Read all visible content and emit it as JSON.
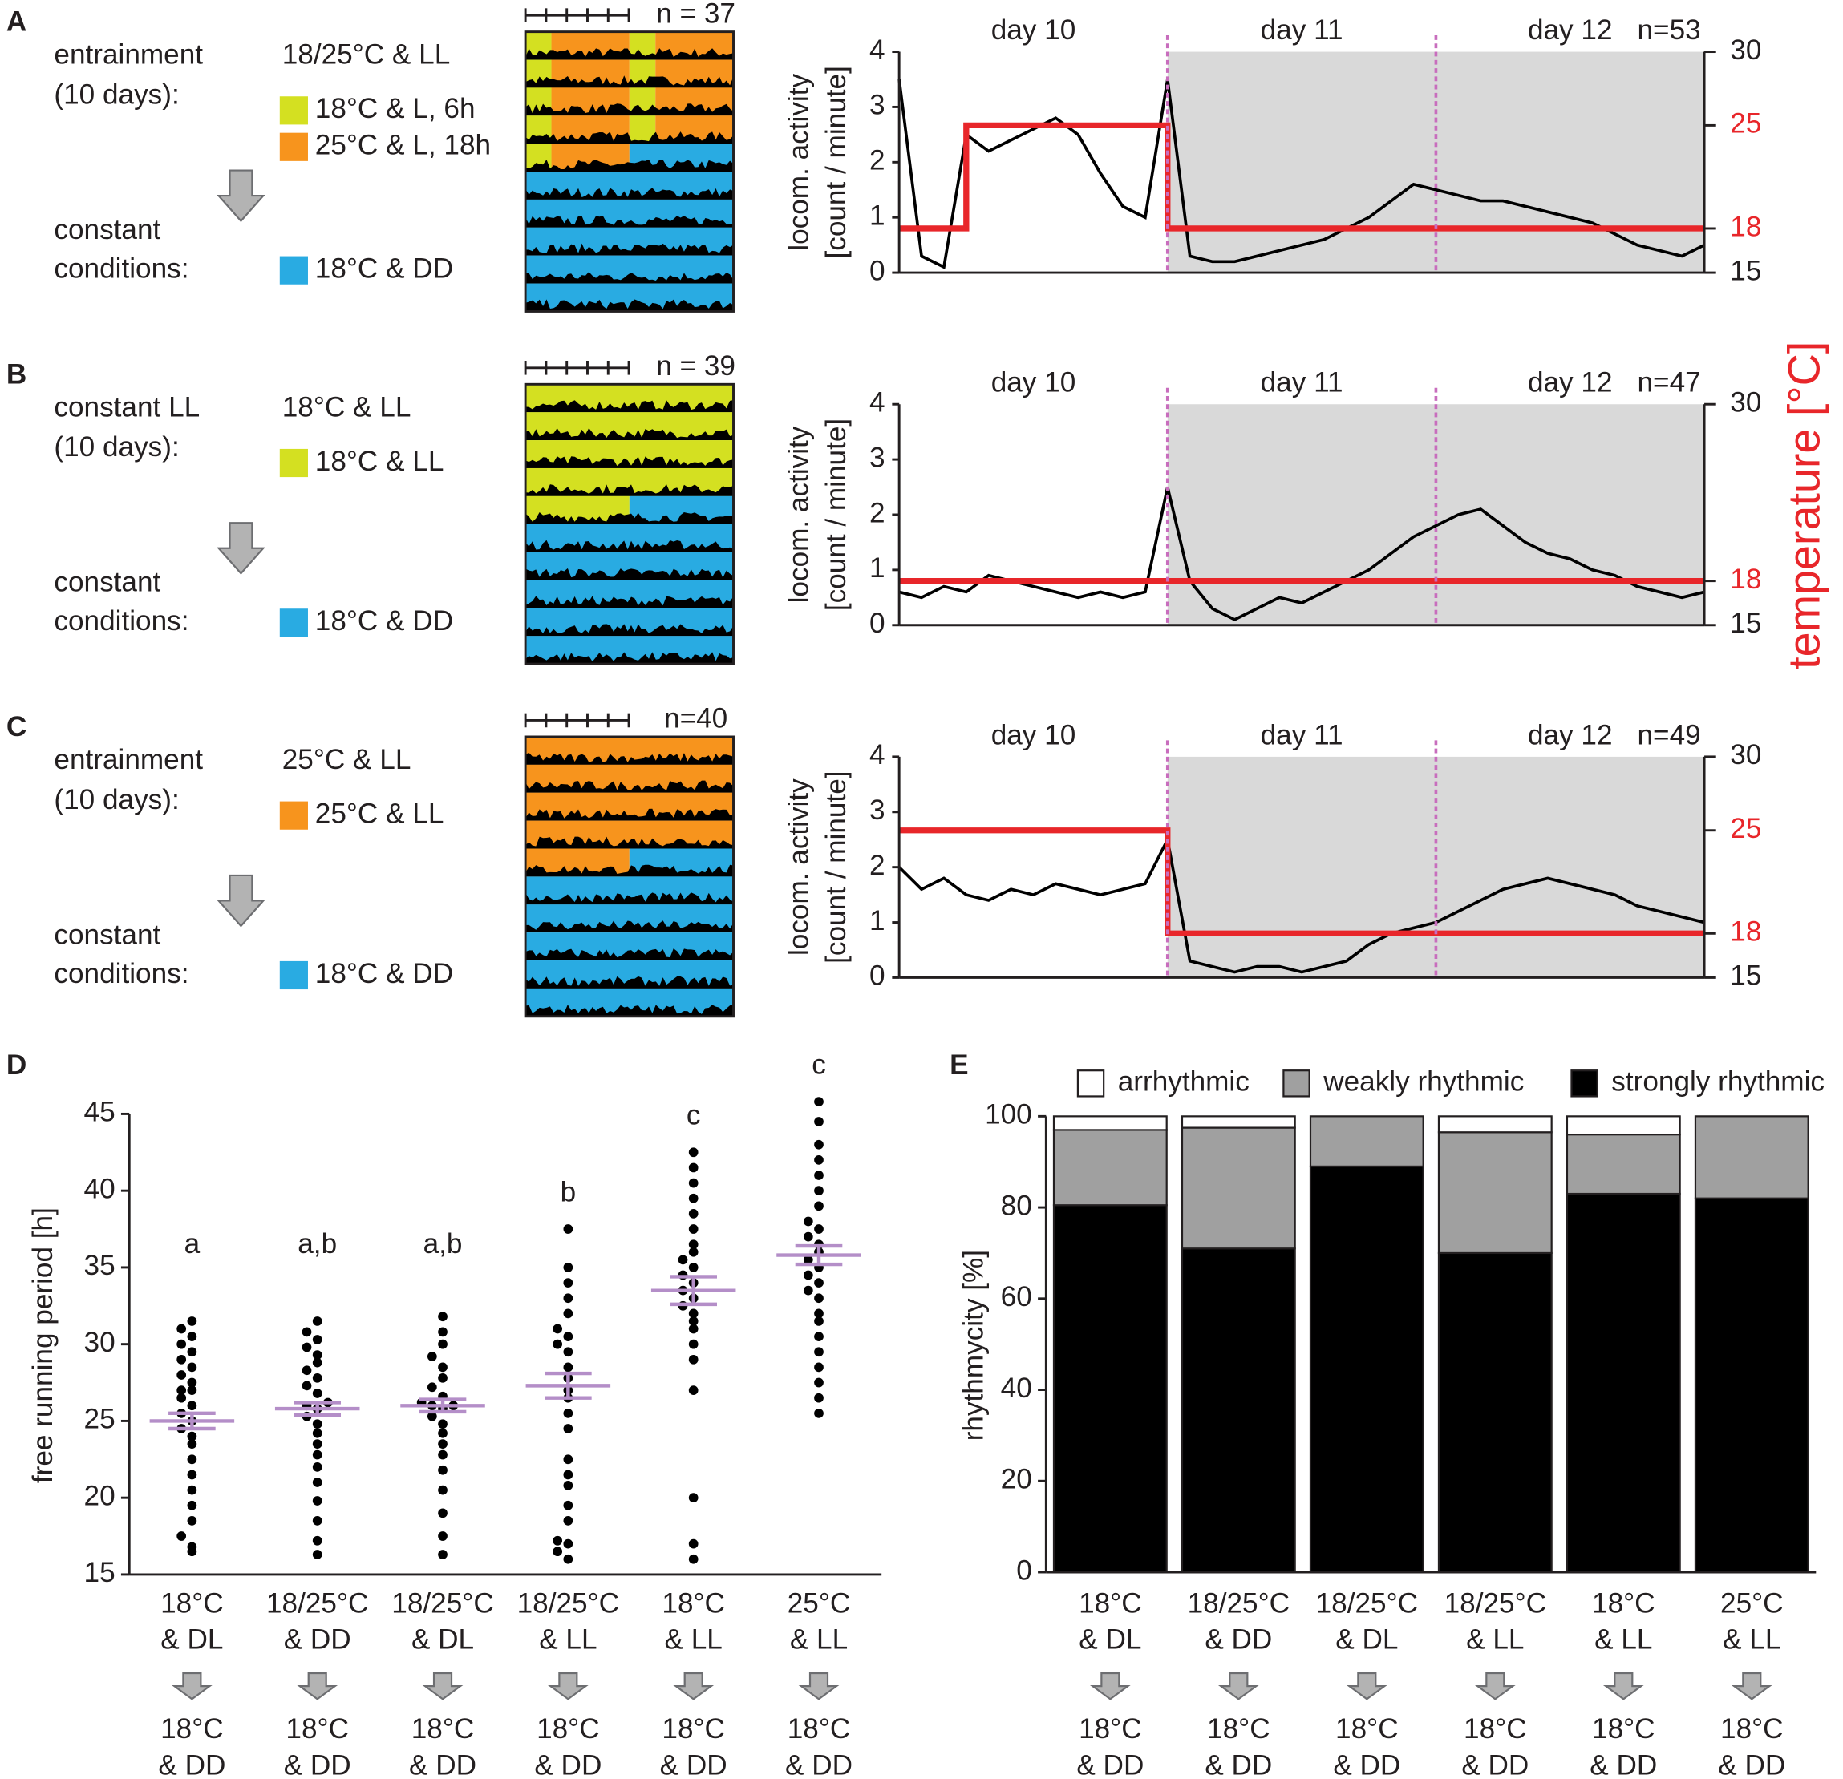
{
  "chart_data": [
    {
      "type": "line",
      "panel": "A",
      "protocol": {
        "entrain": [
          "entrainment",
          "(10 days):"
        ],
        "condition": "18/25°C & LL",
        "legend": [
          {
            "label": "18°C & L, 6h",
            "color": "#d4e021"
          },
          {
            "label": "25°C & L, 18h",
            "color": "#f7941d"
          },
          {
            "label": "18°C & DD",
            "color": "#29abe2"
          }
        ],
        "constant": [
          "constant",
          "conditions:"
        ]
      },
      "actogram_n": "n = 37",
      "day_labels": [
        "day 10",
        "day 11",
        "day 12"
      ],
      "n": "n=53",
      "ylabel": [
        "locom. activity",
        "[count / minute]"
      ],
      "xlim": [
        0,
        72
      ],
      "dark_start": 24,
      "day_lines": [
        24,
        48
      ],
      "day_line_color": "#c86dbd",
      "ylim": [
        0,
        4
      ],
      "yticks": [
        0,
        1,
        2,
        3,
        4
      ],
      "y2lim": [
        15,
        30
      ],
      "y2ticks": [
        15,
        18,
        25,
        30
      ],
      "x": [
        0,
        2,
        4,
        6,
        8,
        10,
        12,
        14,
        16,
        18,
        20,
        22,
        24,
        26,
        28,
        30,
        32,
        34,
        36,
        38,
        40,
        42,
        44,
        46,
        48,
        50,
        52,
        54,
        56,
        58,
        60,
        62,
        64,
        66,
        68,
        70,
        72
      ],
      "series": [
        {
          "color": "#000000",
          "values": [
            3.5,
            0.3,
            0.1,
            2.5,
            2.2,
            2.4,
            2.6,
            2.8,
            2.5,
            1.8,
            1.2,
            1.0,
            3.5,
            0.3,
            0.2,
            0.2,
            0.3,
            0.4,
            0.5,
            0.6,
            0.8,
            1.0,
            1.3,
            1.6,
            1.5,
            1.4,
            1.3,
            1.3,
            1.2,
            1.1,
            1.0,
            0.9,
            0.7,
            0.5,
            0.4,
            0.3,
            0.5
          ]
        },
        {
          "color": "#e8262a",
          "axis": "y2",
          "x": [
            0,
            6,
            6,
            24,
            24,
            72
          ],
          "values": [
            18,
            18,
            25,
            25,
            18,
            18
          ]
        }
      ]
    },
    {
      "type": "line",
      "panel": "B",
      "protocol": {
        "entrain": [
          "constant LL",
          "(10 days):"
        ],
        "condition": "18°C & LL",
        "legend": [
          {
            "label": "18°C & LL",
            "color": "#d4e021"
          },
          {
            "label": "18°C & DD",
            "color": "#29abe2"
          }
        ],
        "constant": [
          "constant",
          "conditions:"
        ]
      },
      "actogram_n": "n = 39",
      "day_labels": [
        "day 10",
        "day 11",
        "day 12"
      ],
      "n": "n=47",
      "ylabel": [
        "locom. activity",
        "[count / minute]"
      ],
      "y2label": "temperature [°C]",
      "xlim": [
        0,
        72
      ],
      "dark_start": 24,
      "day_lines": [
        24,
        48
      ],
      "day_line_color": "#c86dbd",
      "ylim": [
        0,
        4
      ],
      "yticks": [
        0,
        1,
        2,
        3,
        4
      ],
      "y2lim": [
        15,
        30
      ],
      "y2ticks": [
        15,
        18,
        30
      ],
      "x": [
        0,
        2,
        4,
        6,
        8,
        10,
        12,
        14,
        16,
        18,
        20,
        22,
        24,
        26,
        28,
        30,
        32,
        34,
        36,
        38,
        40,
        42,
        44,
        46,
        48,
        50,
        52,
        54,
        56,
        58,
        60,
        62,
        64,
        66,
        68,
        70,
        72
      ],
      "series": [
        {
          "color": "#000000",
          "values": [
            0.6,
            0.5,
            0.7,
            0.6,
            0.9,
            0.8,
            0.7,
            0.6,
            0.5,
            0.6,
            0.5,
            0.6,
            2.5,
            0.8,
            0.3,
            0.1,
            0.3,
            0.5,
            0.4,
            0.6,
            0.8,
            1.0,
            1.3,
            1.6,
            1.8,
            2.0,
            2.1,
            1.8,
            1.5,
            1.3,
            1.2,
            1.0,
            0.9,
            0.7,
            0.6,
            0.5,
            0.6
          ]
        },
        {
          "color": "#e8262a",
          "axis": "y2",
          "x": [
            0,
            72
          ],
          "values": [
            18,
            18
          ]
        }
      ]
    },
    {
      "type": "line",
      "panel": "C",
      "protocol": {
        "entrain": [
          "entrainment",
          "(10 days):"
        ],
        "condition": "25°C & LL",
        "legend": [
          {
            "label": "25°C & LL",
            "color": "#f7941d"
          },
          {
            "label": "18°C & DD",
            "color": "#29abe2"
          }
        ],
        "constant": [
          "constant",
          "conditions:"
        ]
      },
      "actogram_n": "n=40",
      "day_labels": [
        "day 10",
        "day 11",
        "day 12"
      ],
      "n": "n=49",
      "ylabel": [
        "locom. activity",
        "[count / minute]"
      ],
      "xlim": [
        0,
        72
      ],
      "dark_start": 24,
      "day_lines": [
        24,
        48
      ],
      "day_line_color": "#c86dbd",
      "ylim": [
        0,
        4
      ],
      "yticks": [
        0,
        1,
        2,
        3,
        4
      ],
      "y2lim": [
        15,
        30
      ],
      "y2ticks": [
        15,
        18,
        25,
        30
      ],
      "x": [
        0,
        2,
        4,
        6,
        8,
        10,
        12,
        14,
        16,
        18,
        20,
        22,
        24,
        26,
        28,
        30,
        32,
        34,
        36,
        38,
        40,
        42,
        44,
        46,
        48,
        50,
        52,
        54,
        56,
        58,
        60,
        62,
        64,
        66,
        68,
        70,
        72
      ],
      "series": [
        {
          "color": "#000000",
          "values": [
            2.0,
            1.6,
            1.8,
            1.5,
            1.4,
            1.6,
            1.5,
            1.7,
            1.6,
            1.5,
            1.6,
            1.7,
            2.5,
            0.3,
            0.2,
            0.1,
            0.2,
            0.2,
            0.1,
            0.2,
            0.3,
            0.6,
            0.8,
            0.9,
            1.0,
            1.2,
            1.4,
            1.6,
            1.7,
            1.8,
            1.7,
            1.6,
            1.5,
            1.3,
            1.2,
            1.1,
            1.0
          ]
        },
        {
          "color": "#e8262a",
          "axis": "y2",
          "x": [
            0,
            24,
            24,
            72
          ],
          "values": [
            25,
            25,
            18,
            18
          ]
        }
      ]
    },
    {
      "type": "scatter",
      "panel": "D",
      "categories": [
        [
          "18°C",
          "& DL"
        ],
        [
          "18/25°C",
          "& DD"
        ],
        [
          "18/25°C",
          "& DL"
        ],
        [
          "18/25°C",
          "& LL"
        ],
        [
          "18°C",
          "& LL"
        ],
        [
          "25°C",
          "& LL"
        ]
      ],
      "after": [
        "18°C",
        "& DD"
      ],
      "letters": [
        "a",
        "a,b",
        "a,b",
        "b",
        "c",
        "c"
      ],
      "ylabel": "free running period [h]",
      "ylim": [
        15,
        45
      ],
      "yticks": [
        15,
        20,
        25,
        30,
        35,
        40,
        45
      ],
      "color": "#000000",
      "mean_color": "#b48ec8",
      "values": [
        [
          16.5,
          16.8,
          17.5,
          18.5,
          19.5,
          20.5,
          21.5,
          22.5,
          23.5,
          24.0,
          24.5,
          25.0,
          25.5,
          26.0,
          26.5,
          27.0,
          27.0,
          27.5,
          28.0,
          28.5,
          29.0,
          29.5,
          30.0,
          30.5,
          31.0,
          31.5
        ],
        [
          16.3,
          17.2,
          18.5,
          19.8,
          21.0,
          22.0,
          22.8,
          23.5,
          24.2,
          24.8,
          25.3,
          25.8,
          26.0,
          26.2,
          26.8,
          27.3,
          27.8,
          28.3,
          28.8,
          29.3,
          29.8,
          30.3,
          30.8,
          31.5
        ],
        [
          16.3,
          17.5,
          19.0,
          20.5,
          21.8,
          22.8,
          23.5,
          24.2,
          24.8,
          25.3,
          25.8,
          26.0,
          26.0,
          26.2,
          26.6,
          27.2,
          27.8,
          28.5,
          29.2,
          30.0,
          30.8,
          31.8
        ],
        [
          16.0,
          16.5,
          17.0,
          17.2,
          18.5,
          19.5,
          20.8,
          21.5,
          22.5,
          24.5,
          25.5,
          26.5,
          27.0,
          27.8,
          28.5,
          29.5,
          30.0,
          30.5,
          31.0,
          32.0,
          33.0,
          34.0,
          35.0,
          37.5
        ],
        [
          16.0,
          17.0,
          20.0,
          27.0,
          29.0,
          30.0,
          31.0,
          31.5,
          32.0,
          32.5,
          33.0,
          33.5,
          34.0,
          34.5,
          35.0,
          35.5,
          36.0,
          36.5,
          37.5,
          38.5,
          39.5,
          40.5,
          41.5,
          42.5
        ],
        [
          25.5,
          26.5,
          27.5,
          28.5,
          29.5,
          30.5,
          31.5,
          32.0,
          33.0,
          33.5,
          34.0,
          34.5,
          35.0,
          35.5,
          36.0,
          36.5,
          37.0,
          37.5,
          38.0,
          39.0,
          40.0,
          41.0,
          42.0,
          43.0,
          44.5,
          45.8
        ]
      ],
      "means": [
        25.0,
        25.8,
        26.0,
        27.3,
        33.5,
        35.8
      ],
      "sems": [
        0.5,
        0.4,
        0.4,
        0.8,
        0.9,
        0.6
      ]
    },
    {
      "type": "bar",
      "panel": "E",
      "stacked": true,
      "categories": [
        [
          "18°C",
          "& DL"
        ],
        [
          "18/25°C",
          "& DD"
        ],
        [
          "18/25°C",
          "& DL"
        ],
        [
          "18/25°C",
          "& LL"
        ],
        [
          "18°C",
          "& LL"
        ],
        [
          "25°C",
          "& LL"
        ]
      ],
      "after": [
        "18°C",
        "& DD"
      ],
      "ylabel": "rhythmycity [%]",
      "ylim": [
        0,
        100
      ],
      "yticks": [
        0,
        20,
        40,
        60,
        80,
        100
      ],
      "series": [
        {
          "name": "strongly rhythmic",
          "color": "#000000",
          "values": [
            80.5,
            71,
            89,
            70,
            83,
            82
          ]
        },
        {
          "name": "weakly rhythmic",
          "color": "#a0a0a0",
          "values": [
            16.5,
            26.5,
            11,
            26.5,
            13,
            18
          ]
        },
        {
          "name": "arrhythmic",
          "color": "#ffffff",
          "values": [
            3,
            2.5,
            0,
            3.5,
            4,
            0
          ]
        }
      ]
    }
  ]
}
